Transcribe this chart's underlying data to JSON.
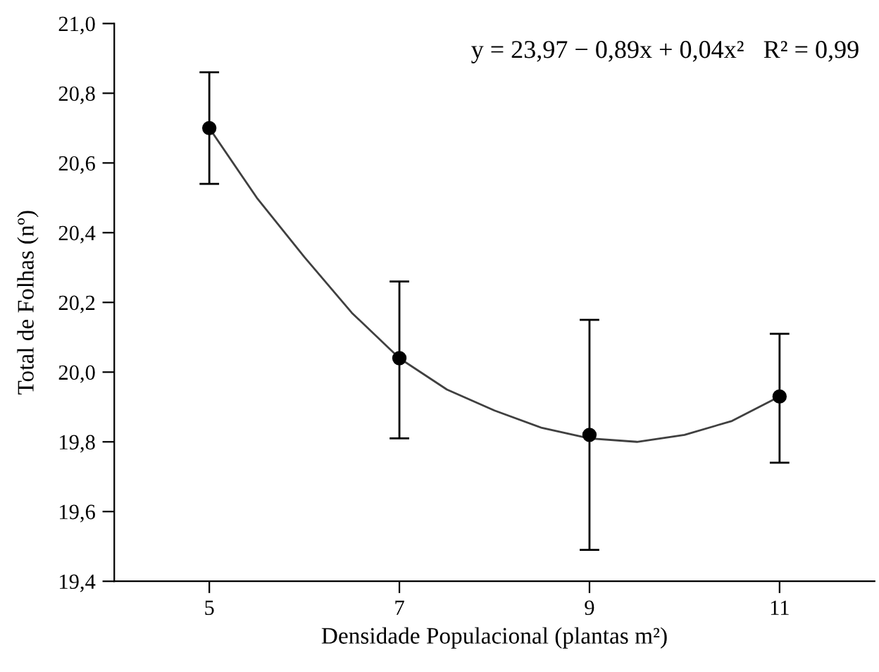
{
  "chart_data": {
    "type": "scatter",
    "xlabel": "Densidade Populacional (plantas m²)",
    "ylabel": "Total de Folhas (nº)",
    "annotations": [
      "y = 23,97 − 0,89x + 0,04x²   R² = 0,99"
    ],
    "x": [
      5,
      7,
      9,
      11
    ],
    "series": [
      {
        "color": "#000000",
        "marker": "circle",
        "values": [
          20.7,
          20.04,
          19.82,
          19.93
        ],
        "errors": [
          [
            20.54,
            20.86
          ],
          [
            19.81,
            20.26
          ],
          [
            19.49,
            20.15
          ],
          [
            19.74,
            20.11
          ]
        ]
      },
      {
        "type": "line",
        "color": "#404040",
        "marker": "none",
        "line_style": "solid",
        "x": [
          5,
          5.5,
          6,
          6.5,
          7,
          7.5,
          8,
          8.5,
          9,
          9.5,
          10,
          10.5,
          11
        ],
        "values": [
          20.7,
          20.5,
          20.33,
          20.17,
          20.04,
          19.95,
          19.89,
          19.84,
          19.81,
          19.8,
          19.82,
          19.86,
          19.93
        ]
      }
    ],
    "xlim": [
      4,
      12
    ],
    "xticks": [
      5,
      7,
      9,
      11
    ],
    "ylim": [
      19.4,
      21.0
    ],
    "yticks": [
      {
        "value": 19.4,
        "label": "19,4"
      },
      {
        "value": 19.6,
        "label": "19,6"
      },
      {
        "value": 19.8,
        "label": "19,8"
      },
      {
        "value": 20.0,
        "label": "20,0"
      },
      {
        "value": 20.2,
        "label": "20,2"
      },
      {
        "value": 20.4,
        "label": "20,4"
      },
      {
        "value": 20.6,
        "label": "20,6"
      },
      {
        "value": 20.8,
        "label": "20,8"
      },
      {
        "value": 21.0,
        "label": "21,0"
      }
    ],
    "grid": false,
    "legend": false
  }
}
